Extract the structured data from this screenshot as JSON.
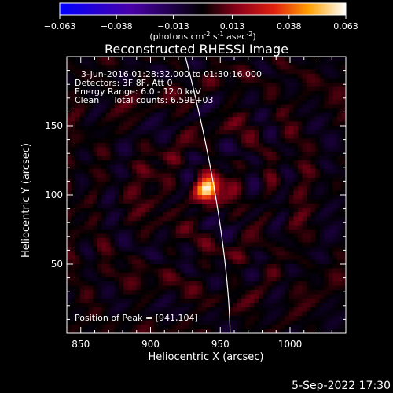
{
  "chart_data": {
    "type": "heatmap",
    "title": "Reconstructed RHESSI Image",
    "xlabel": "Heliocentric X (arcsec)",
    "ylabel": "Heliocentric Y (arcsec)",
    "xlim": [
      840,
      1040
    ],
    "ylim": [
      0,
      200
    ],
    "x_ticks": [
      850,
      900,
      950,
      1000
    ],
    "y_ticks": [
      50,
      100,
      150
    ],
    "colorbar": {
      "min": -0.063,
      "max": 0.063,
      "ticks": [
        "-0.063",
        "-0.038",
        "-0.013",
        "0.013",
        "0.038",
        "0.063"
      ],
      "unit_text": "(photons cm",
      "unit_sup1": "-2",
      "unit_mid": " s",
      "unit_sup2": "-1",
      "unit_mid2": " asec",
      "unit_sup3": "-2",
      "unit_end": ")"
    },
    "annotations": {
      "time_range": "3-Jun-2016 01:28:32.000 to 01:30:16.000",
      "detectors": "Detectors: 3F 8F, Att 0",
      "energy": "Energy Range: 6.0 - 12.0 keV",
      "clean": "Clean     Total counts: 6.59E+03",
      "peak": "Position of Peak = [941,104]"
    },
    "peak": {
      "x": 941,
      "y": 104,
      "value": 0.063
    },
    "limb": {
      "x_at_top": 925,
      "x_at_bottom": 957
    }
  },
  "footer": {
    "timestamp": "5-Sep-2022 17:30"
  }
}
